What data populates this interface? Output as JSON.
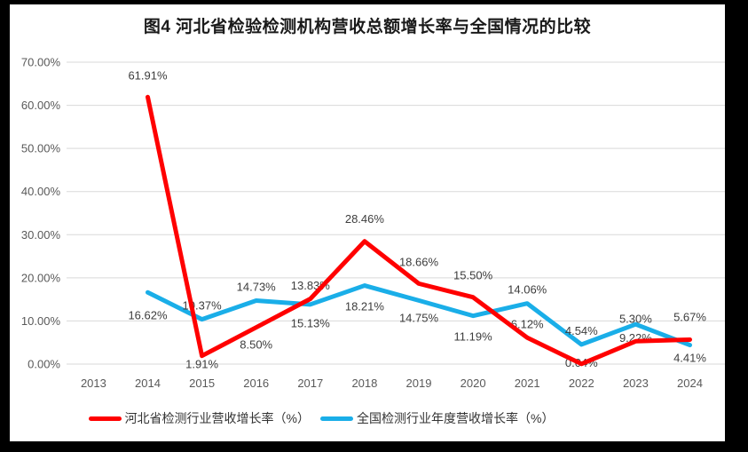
{
  "title": "图4 河北省检验检测机构营收总额增长率与全国情况的比较",
  "colors": {
    "background": "#000000",
    "page": "#ffffff",
    "grid": "#d9d9d9",
    "axis_text": "#595959",
    "data_label_text": "#3d3d3d",
    "hebei_red": "#ff0000",
    "national_blue": "#1aaee8"
  },
  "chart_data": {
    "type": "line",
    "title": "图4 河北省检验检测机构营收总额增长率与全国情况的比较",
    "categories": [
      "2013",
      "2014",
      "2015",
      "2016",
      "2017",
      "2018",
      "2019",
      "2020",
      "2021",
      "2022",
      "2023",
      "2024"
    ],
    "ylabels": [
      "70.00%",
      "60.00%",
      "50.00%",
      "40.00%",
      "30.00%",
      "20.00%",
      "10.00%",
      "0.00%"
    ],
    "ylim": [
      0,
      70
    ],
    "ytick_step": 10,
    "grid": true,
    "legend_position": "bottom",
    "xlabel": "",
    "ylabel": "",
    "series": [
      {
        "name": "河北省检测行业营收增长率（%）",
        "color": "#ff0000",
        "z": 2,
        "years": [
          "2014",
          "2015",
          "2016",
          "2017",
          "2018",
          "2019",
          "2020",
          "2021",
          "2022",
          "2023",
          "2024"
        ],
        "values": [
          61.91,
          1.91,
          8.5,
          15.13,
          28.46,
          18.66,
          15.5,
          6.12,
          0.04,
          5.3,
          5.67
        ],
        "label_pos": [
          "above",
          "below",
          "below",
          "below",
          "above",
          "above",
          "above",
          "above",
          "below",
          "above",
          "above"
        ],
        "label_dy": [
          -9,
          -10,
          0,
          8,
          -10,
          -9,
          -9,
          0,
          -21,
          -10,
          -10
        ]
      },
      {
        "name": "全国检测行业年度营收增长率（%）",
        "color": "#1aaee8",
        "z": 1,
        "years": [
          "2014",
          "2015",
          "2016",
          "2017",
          "2018",
          "2019",
          "2020",
          "2021",
          "2022",
          "2023",
          "2024"
        ],
        "values": [
          16.62,
          10.37,
          14.73,
          13.83,
          18.21,
          14.75,
          11.19,
          14.06,
          4.54,
          9.22,
          4.41
        ],
        "label_pos": [
          "below",
          "above",
          "above",
          "above",
          "below",
          "below",
          "below",
          "above",
          "above",
          "below",
          "below"
        ],
        "label_dy": [
          6,
          0,
          0,
          -6,
          4,
          0,
          4,
          0,
          0,
          -4,
          -5
        ]
      }
    ]
  }
}
